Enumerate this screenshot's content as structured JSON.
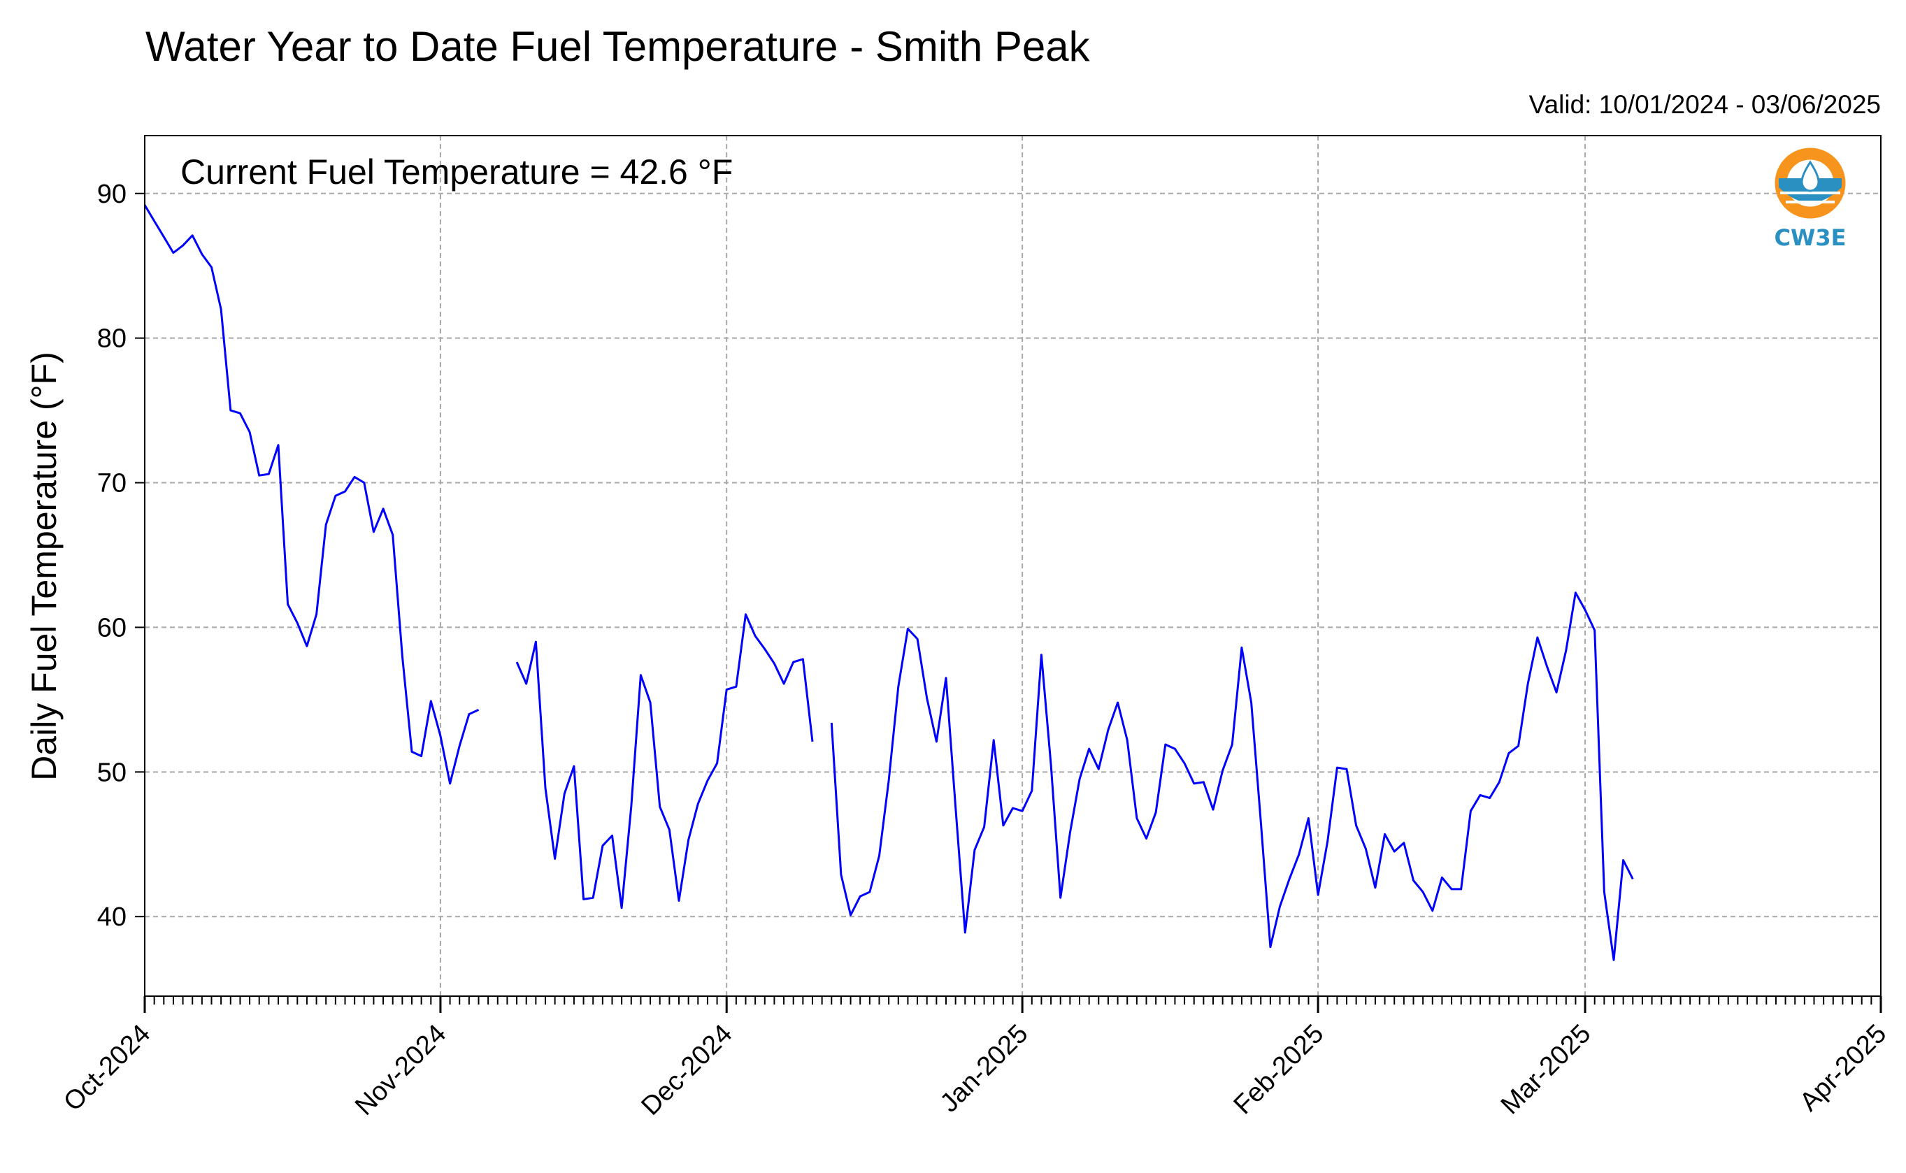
{
  "chart_data": {
    "type": "line",
    "title": "Water Year to Date Fuel Temperature - Smith Peak",
    "subtitle": "Valid: 10/01/2024 - 03/06/2025",
    "annotation": "Current Fuel Temperature = 42.6 °F",
    "ylabel": "Daily Fuel Temperature (°F)",
    "xlabel": "",
    "ylim": [
      34.5,
      94
    ],
    "xlim": [
      "2024-10-01",
      "2025-04-01"
    ],
    "yticks": [
      40,
      50,
      60,
      70,
      80,
      90
    ],
    "ytick_labels": [
      "40",
      "50",
      "60",
      "70",
      "80",
      "90"
    ],
    "xtick_labels": [
      "Oct-2024",
      "Nov-2024",
      "Dec-2024",
      "Jan-2025",
      "Feb-2025",
      "Mar-2025",
      "Apr-2025"
    ],
    "xtick_dates": [
      "2024-10-01",
      "2024-11-01",
      "2024-12-01",
      "2025-01-01",
      "2025-02-01",
      "2025-03-01",
      "2025-04-01"
    ],
    "grid": true,
    "line_color": "#0000ff",
    "series": [
      {
        "x": [
          "2024-10-01",
          "2024-10-02",
          "2024-10-03",
          "2024-10-04",
          "2024-10-05",
          "2024-10-06",
          "2024-10-07",
          "2024-10-08",
          "2024-10-09",
          "2024-10-10",
          "2024-10-11",
          "2024-10-12",
          "2024-10-13",
          "2024-10-14",
          "2024-10-15",
          "2024-10-16",
          "2024-10-17",
          "2024-10-18",
          "2024-10-19",
          "2024-10-20",
          "2024-10-21",
          "2024-10-22",
          "2024-10-23",
          "2024-10-24",
          "2024-10-25",
          "2024-10-26",
          "2024-10-27",
          "2024-10-28",
          "2024-10-29",
          "2024-10-30",
          "2024-10-31",
          "2024-11-01",
          "2024-11-02",
          "2024-11-03",
          "2024-11-04",
          "2024-11-05",
          "2024-11-06",
          "2024-11-07",
          "2024-11-08",
          "2024-11-09",
          "2024-11-10",
          "2024-11-11",
          "2024-11-12",
          "2024-11-13",
          "2024-11-14",
          "2024-11-15",
          "2024-11-16",
          "2024-11-17",
          "2024-11-18",
          "2024-11-19",
          "2024-11-20",
          "2024-11-21",
          "2024-11-22",
          "2024-11-23",
          "2024-11-24",
          "2024-11-25",
          "2024-11-26",
          "2024-11-27",
          "2024-11-28",
          "2024-11-29",
          "2024-11-30",
          "2024-12-01",
          "2024-12-02",
          "2024-12-03",
          "2024-12-04",
          "2024-12-05",
          "2024-12-06",
          "2024-12-07",
          "2024-12-08",
          "2024-12-09",
          "2024-12-10",
          "2024-12-11",
          "2024-12-12",
          "2024-12-13",
          "2024-12-14",
          "2024-12-15",
          "2024-12-16",
          "2024-12-17",
          "2024-12-18",
          "2024-12-19",
          "2024-12-20",
          "2024-12-21",
          "2024-12-22",
          "2024-12-23",
          "2024-12-24",
          "2024-12-25",
          "2024-12-26",
          "2024-12-27",
          "2024-12-28",
          "2024-12-29",
          "2024-12-30",
          "2024-12-31",
          "2025-01-01",
          "2025-01-02",
          "2025-01-03",
          "2025-01-04",
          "2025-01-05",
          "2025-01-06",
          "2025-01-07",
          "2025-01-08",
          "2025-01-09",
          "2025-01-10",
          "2025-01-11",
          "2025-01-12",
          "2025-01-13",
          "2025-01-14",
          "2025-01-15",
          "2025-01-16",
          "2025-01-17",
          "2025-01-18",
          "2025-01-19",
          "2025-01-20",
          "2025-01-21",
          "2025-01-22",
          "2025-01-23",
          "2025-01-24",
          "2025-01-25",
          "2025-01-26",
          "2025-01-27",
          "2025-01-28",
          "2025-01-29",
          "2025-01-30",
          "2025-01-31",
          "2025-02-01",
          "2025-02-02",
          "2025-02-03",
          "2025-02-04",
          "2025-02-05",
          "2025-02-06",
          "2025-02-07",
          "2025-02-08",
          "2025-02-09",
          "2025-02-10",
          "2025-02-11",
          "2025-02-12",
          "2025-02-13",
          "2025-02-14",
          "2025-02-15",
          "2025-02-16",
          "2025-02-17",
          "2025-02-18",
          "2025-02-19",
          "2025-02-20",
          "2025-02-21",
          "2025-02-22",
          "2025-02-23",
          "2025-02-24",
          "2025-02-25",
          "2025-02-26",
          "2025-02-27",
          "2025-02-28",
          "2025-03-01",
          "2025-03-02",
          "2025-03-03",
          "2025-03-04",
          "2025-03-05",
          "2025-03-06"
        ],
        "y": [
          89.2,
          88.1,
          87.0,
          85.9,
          86.4,
          87.1,
          85.8,
          84.9,
          82.0,
          75.0,
          74.8,
          73.5,
          70.5,
          70.6,
          72.6,
          61.6,
          60.3,
          58.7,
          60.9,
          67.1,
          69.1,
          69.4,
          70.4,
          70.0,
          66.6,
          68.2,
          66.4,
          58.0,
          51.4,
          51.1,
          54.9,
          52.5,
          49.2,
          51.8,
          54.0,
          54.3,
          null,
          null,
          null,
          57.6,
          56.1,
          59.0,
          48.9,
          44.0,
          48.5,
          50.4,
          41.2,
          41.3,
          44.9,
          45.6,
          40.6,
          47.6,
          56.7,
          54.8,
          47.6,
          46.0,
          41.1,
          45.3,
          47.8,
          49.4,
          50.6,
          55.7,
          55.9,
          60.9,
          59.4,
          58.5,
          57.5,
          56.1,
          57.6,
          57.8,
          52.1,
          null,
          53.4,
          42.9,
          40.1,
          41.4,
          41.7,
          44.2,
          49.4,
          55.9,
          59.9,
          59.2,
          55.1,
          52.1,
          56.5,
          47.6,
          38.9,
          44.6,
          46.2,
          52.2,
          46.3,
          47.5,
          47.3,
          48.7,
          58.1,
          50.5,
          41.3,
          45.8,
          49.5,
          51.6,
          50.2,
          52.9,
          54.8,
          52.2,
          46.8,
          45.4,
          47.2,
          51.9,
          51.6,
          50.6,
          49.2,
          49.3,
          47.4,
          50.1,
          51.9,
          58.6,
          54.8,
          46.6,
          37.9,
          40.7,
          42.6,
          44.3,
          46.8,
          41.5,
          45.2,
          50.3,
          50.2,
          46.3,
          44.7,
          42.0,
          45.7,
          44.5,
          45.1,
          42.5,
          41.7,
          40.4,
          42.7,
          41.9,
          41.9,
          47.3,
          48.4,
          48.2,
          49.3,
          51.3,
          51.8,
          56.1,
          59.3,
          57.3,
          55.5,
          58.4,
          62.4,
          61.2,
          59.8,
          41.7,
          37.0,
          43.9,
          42.6
        ]
      }
    ]
  },
  "logo": {
    "text": "CW3E",
    "ring_color": "#f7941d",
    "blue_color": "#2a8fc1"
  }
}
